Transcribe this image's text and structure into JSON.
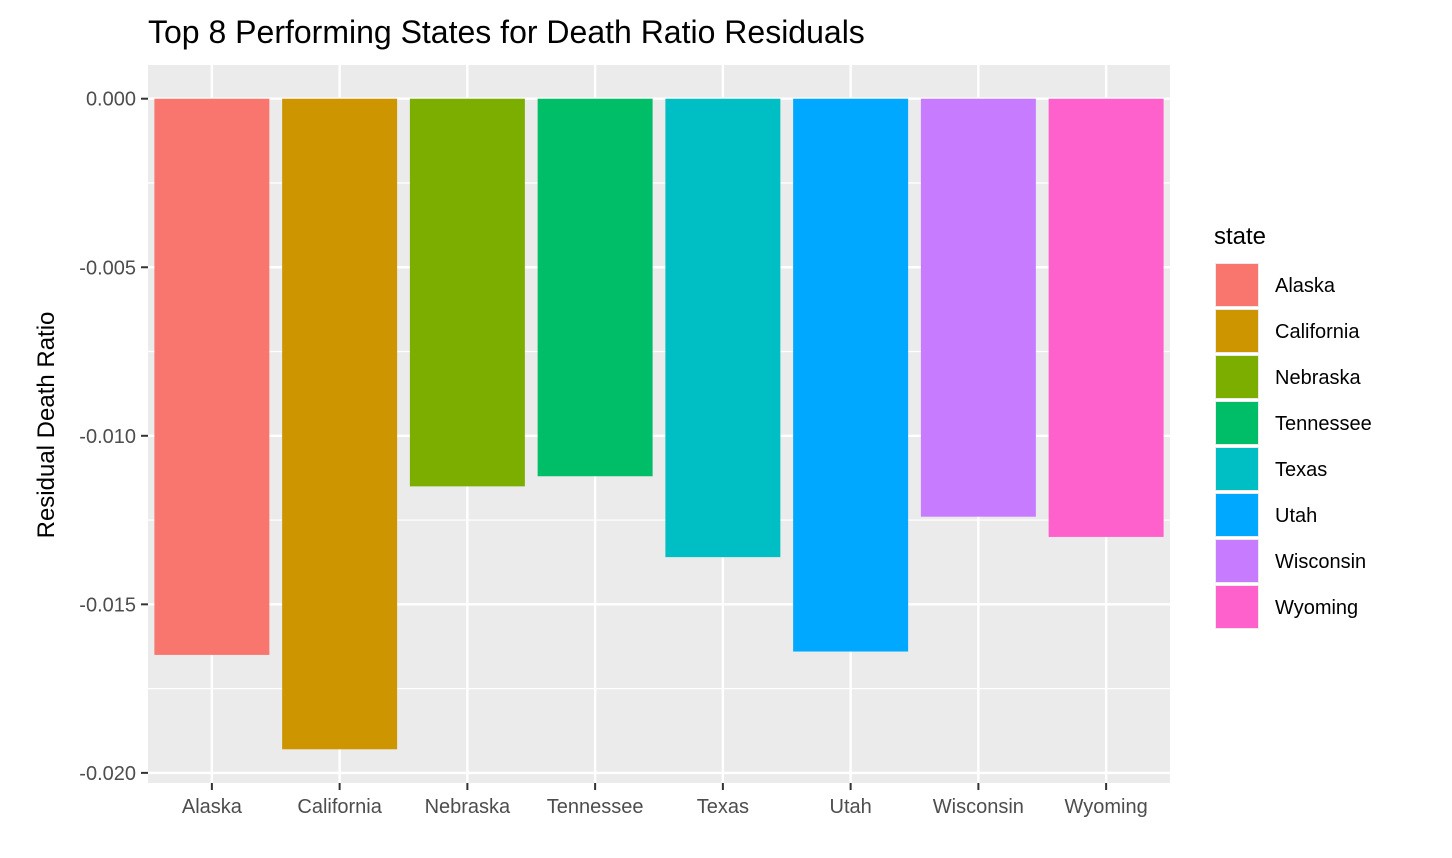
{
  "chart_data": {
    "type": "bar",
    "title": "Top 8 Performing States for Death Ratio Residuals",
    "xlabel": "",
    "ylabel": "Residual Death Ratio",
    "categories": [
      "Alaska",
      "California",
      "Nebraska",
      "Tennessee",
      "Texas",
      "Utah",
      "Wisconsin",
      "Wyoming"
    ],
    "values": [
      -0.0165,
      -0.0193,
      -0.0115,
      -0.0112,
      -0.0136,
      -0.0164,
      -0.0124,
      -0.013
    ],
    "colors": [
      "#F8766D",
      "#CD9600",
      "#7CAE00",
      "#00BE67",
      "#00BFC4",
      "#00A9FF",
      "#C77CFF",
      "#FF61CC"
    ],
    "yticks": [
      "0.000",
      "-0.005",
      "-0.010",
      "-0.015",
      "-0.020"
    ],
    "ytick_values": [
      0,
      -0.005,
      -0.01,
      -0.015,
      -0.02
    ],
    "ylim": [
      -0.0203,
      0.001
    ],
    "grid": true,
    "legend": {
      "title": "state",
      "position": "right"
    },
    "panel_background": "#EBEBEB",
    "grid_color": "#FFFFFF"
  }
}
